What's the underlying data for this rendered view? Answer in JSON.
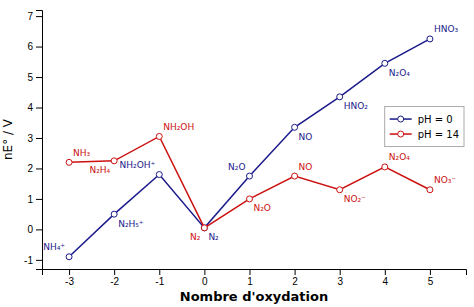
{
  "chart_data": {
    "type": "line",
    "x": [
      -3,
      -2,
      -1,
      0,
      1,
      2,
      3,
      4,
      5
    ],
    "series": [
      {
        "name": "pH = 0",
        "color": "#1a1a8c",
        "marker": "circle",
        "values": [
          -0.9,
          0.5,
          1.8,
          0.05,
          1.75,
          3.35,
          4.35,
          5.45,
          6.25
        ],
        "point_labels": [
          "NH₄⁺",
          "N₂H₅⁺",
          "NH₂OH⁺",
          "N₂",
          "N₂O",
          "NO",
          "HNO₂",
          "N₂O₄",
          "HNO₃"
        ]
      },
      {
        "name": "pH = 14",
        "color": "#cc1111",
        "marker": "circle",
        "values": [
          2.2,
          2.25,
          3.05,
          0.05,
          1.0,
          1.75,
          1.3,
          2.05,
          1.3
        ],
        "point_labels": [
          "NH₃",
          "N₂H₄",
          "NH₂OH",
          "N₂",
          "N₂O",
          "NO",
          "NO₂⁻",
          "N₂O₄",
          "NO₃⁻"
        ]
      }
    ],
    "xlabel": "Nombre d'oxydation",
    "ylabel": "nE° / V",
    "xlim": [
      -3.6,
      5.8
    ],
    "ylim": [
      -1.3,
      7.2
    ],
    "xticks": [
      -3,
      -2,
      -1,
      0,
      1,
      2,
      3,
      4,
      5
    ],
    "yticks": [
      -1,
      0,
      1,
      2,
      3,
      4,
      5,
      6,
      7
    ],
    "grid": false,
    "legend": "right"
  }
}
